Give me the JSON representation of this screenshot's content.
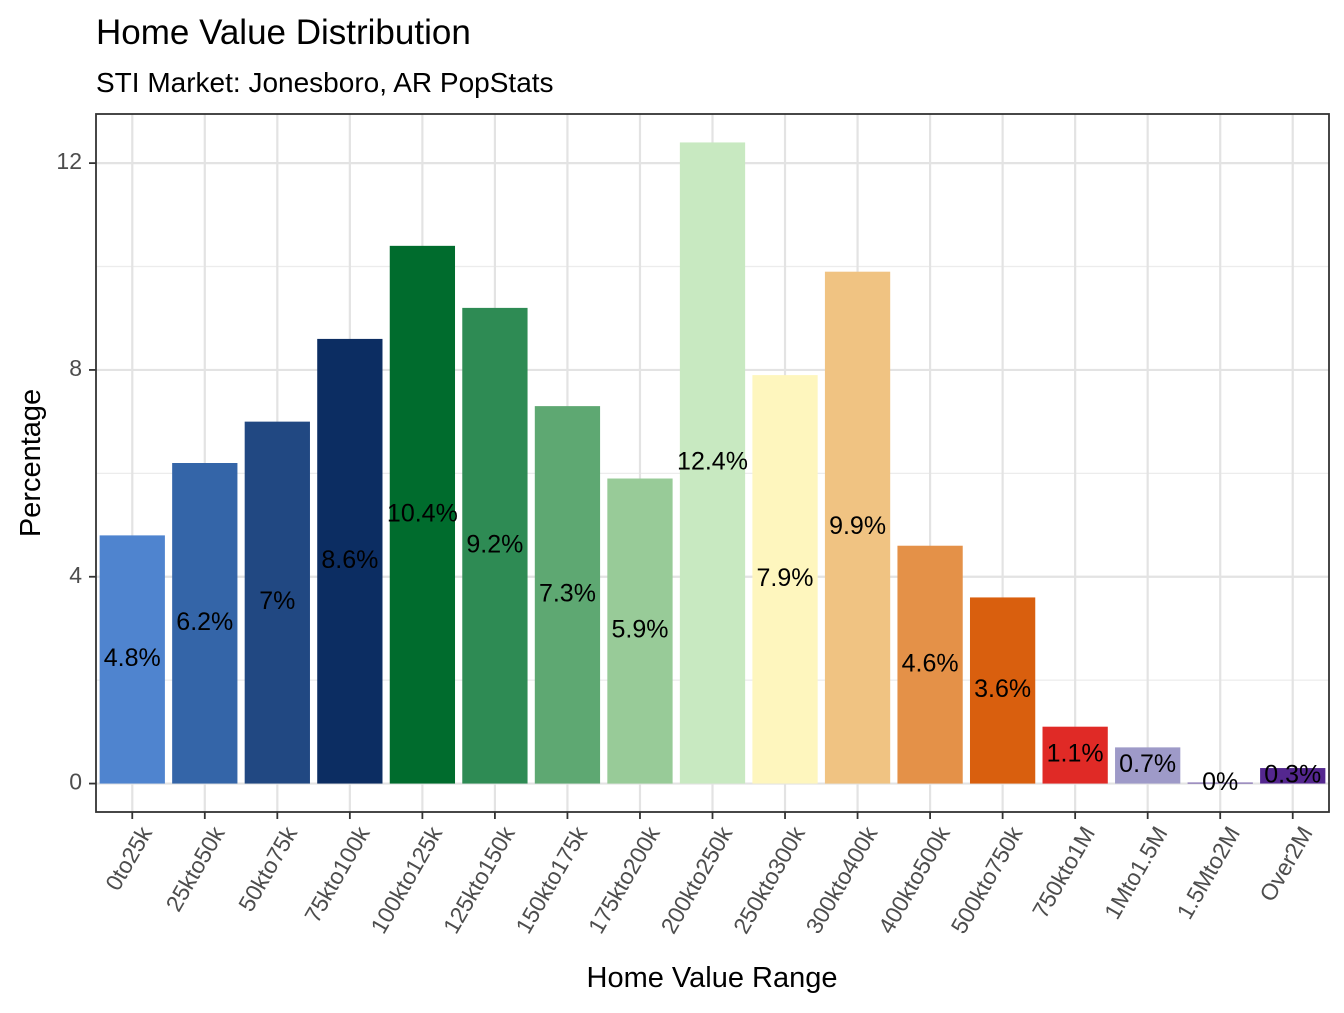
{
  "chart_data": {
    "type": "bar",
    "title": "Home Value Distribution",
    "subtitle": "STI Market: Jonesboro, AR PopStats",
    "xlabel": "Home Value Range",
    "ylabel": "Percentage",
    "ylim": [
      -0.55,
      12.95
    ],
    "yticks": [
      0,
      4,
      8,
      12
    ],
    "grid": true,
    "legend": "none",
    "categories": [
      "0to25k",
      "25kto50k",
      "50kto75k",
      "75kto100k",
      "100kto125k",
      "125kto150k",
      "150kto175k",
      "175kto200k",
      "200kto250k",
      "250kto300k",
      "300kto400k",
      "400kto500k",
      "500kto750k",
      "750kto1M",
      "1Mto1.5M",
      "1.5Mto2M",
      "Over2M"
    ],
    "values": [
      4.8,
      6.2,
      7.0,
      8.6,
      10.4,
      9.2,
      7.3,
      5.9,
      12.4,
      7.9,
      9.9,
      4.6,
      3.6,
      1.1,
      0.7,
      0.0,
      0.3
    ],
    "labels": [
      "4.8%",
      "6.2%",
      "7%",
      "8.6%",
      "10.4%",
      "9.2%",
      "7.3%",
      "5.9%",
      "12.4%",
      "7.9%",
      "9.9%",
      "4.6%",
      "3.6%",
      "1.1%",
      "0.7%",
      "0%",
      "0.3%"
    ],
    "colors": [
      "#4f84cf",
      "#3465a8",
      "#214882",
      "#0c2d62",
      "#006c2d",
      "#2e8b54",
      "#5ea872",
      "#98cb98",
      "#c8e9c1",
      "#fef6be",
      "#f0c382",
      "#e49148",
      "#d95f0e",
      "#e02a26",
      "#9e9ac8",
      "#6a51a3",
      "#54278f"
    ]
  }
}
